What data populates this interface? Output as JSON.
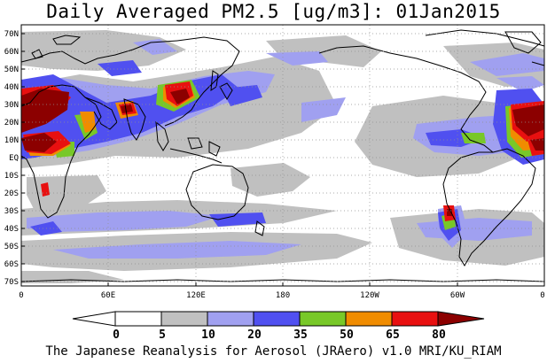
{
  "title": "Daily Averaged PM2.5 [ug/m3]: 01Jan2015",
  "footer": "The Japanese Reanalysis for Aerosol (JRAero) v1.0 MRI/KU_RIAM",
  "map": {
    "lat_labels": [
      "70N",
      "60N",
      "50N",
      "40N",
      "30N",
      "20N",
      "10N",
      "EQ",
      "10S",
      "20S",
      "30S",
      "40S",
      "50S",
      "60S",
      "70S"
    ],
    "lon_labels": [
      "0",
      "60E",
      "120E",
      "180",
      "120W",
      "60W",
      "0"
    ]
  },
  "colorbar": {
    "labels": [
      "0",
      "5",
      "10",
      "20",
      "35",
      "50",
      "65",
      "80"
    ],
    "colors": [
      "#ffffff",
      "#c0c0c0",
      "#a0a0f0",
      "#5050f0",
      "#78c828",
      "#f08c00",
      "#e81010",
      "#8c0000"
    ]
  }
}
